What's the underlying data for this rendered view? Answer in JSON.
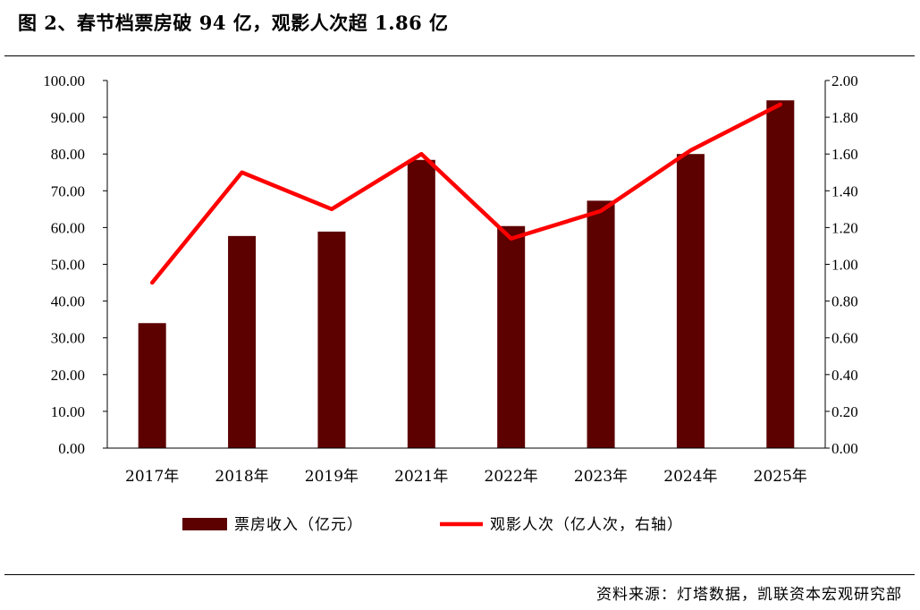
{
  "title": "图 2、春节档票房破 94 亿，观影人次超 1.86 亿",
  "source": "资料来源：灯塔数据，凯联资本宏观研究部",
  "chart_data": {
    "type": "bar+line",
    "categories": [
      "2017年",
      "2018年",
      "2019年",
      "2021年",
      "2022年",
      "2023年",
      "2024年",
      "2025年"
    ],
    "series": [
      {
        "name": "票房收入（亿元）",
        "type": "bar",
        "axis": "left",
        "color": "#5c0000",
        "values": [
          34.0,
          57.7,
          58.9,
          78.4,
          60.4,
          67.3,
          80.0,
          94.6
        ]
      },
      {
        "name": "观影人次（亿人次，右轴）",
        "type": "line",
        "axis": "right",
        "color": "#ff0000",
        "values": [
          0.9,
          1.5,
          1.3,
          1.6,
          1.14,
          1.29,
          1.62,
          1.87
        ]
      }
    ],
    "left_axis": {
      "min": 0,
      "max": 100,
      "step": 10,
      "tick_labels": [
        "0.00",
        "10.00",
        "20.00",
        "30.00",
        "40.00",
        "50.00",
        "60.00",
        "70.00",
        "80.00",
        "90.00",
        "100.00"
      ]
    },
    "right_axis": {
      "min": 0,
      "max": 2,
      "step": 0.2,
      "tick_labels": [
        "0.00",
        "0.20",
        "0.40",
        "0.60",
        "0.80",
        "1.00",
        "1.20",
        "1.40",
        "1.60",
        "1.80",
        "2.00"
      ]
    },
    "grid": false,
    "legend_position": "bottom"
  }
}
